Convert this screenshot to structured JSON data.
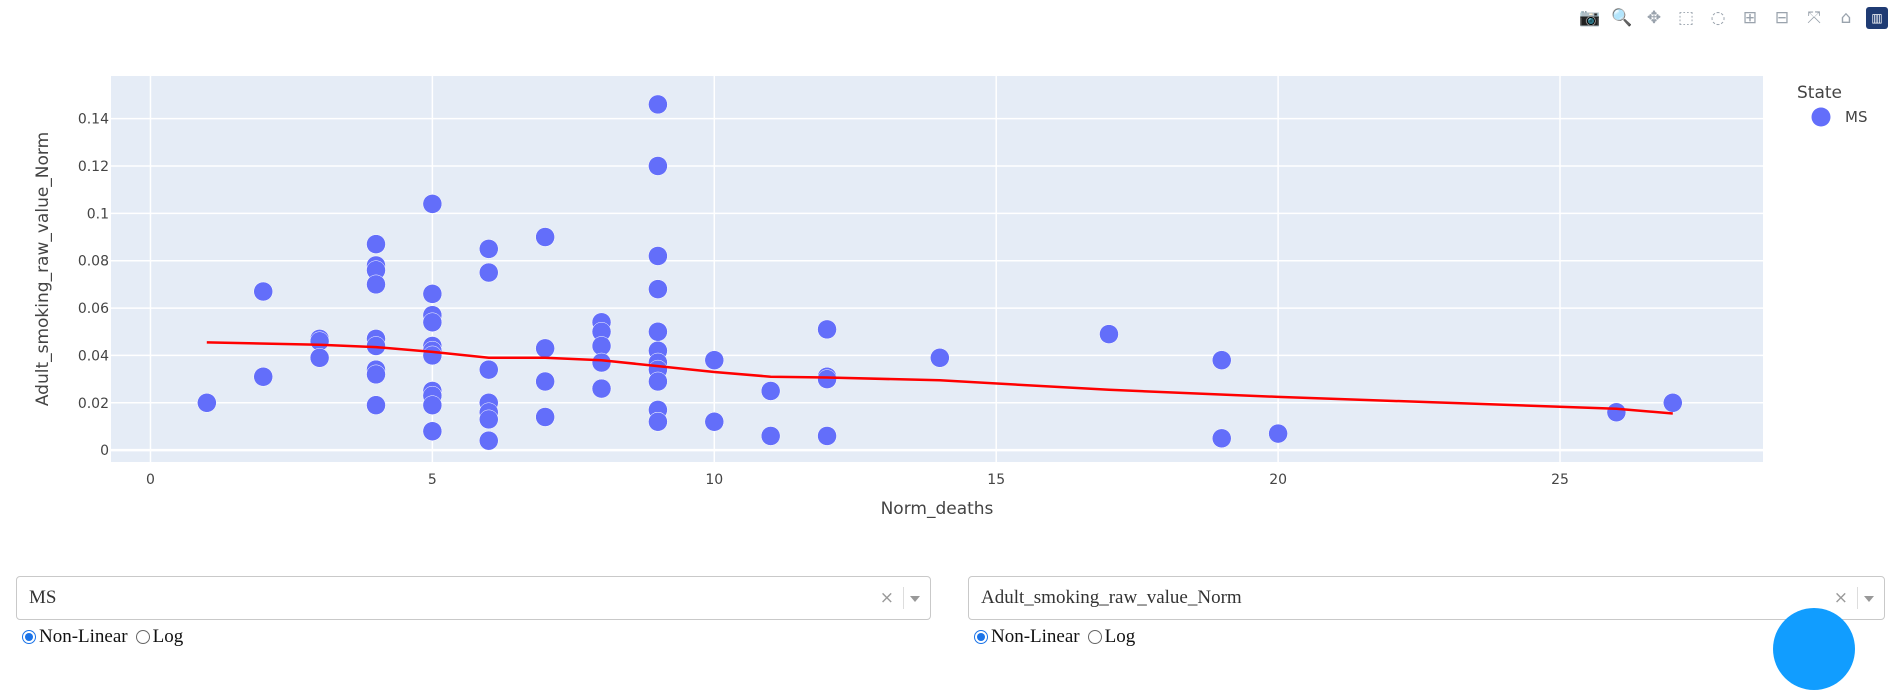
{
  "modebar": {
    "buttons": [
      {
        "name": "camera-icon",
        "glyph": "📷"
      },
      {
        "name": "zoom-icon",
        "glyph": "🔍"
      },
      {
        "name": "pan-icon",
        "glyph": "✥"
      },
      {
        "name": "box-select-icon",
        "glyph": "⬚"
      },
      {
        "name": "lasso-select-icon",
        "glyph": "◌"
      },
      {
        "name": "zoom-in-icon",
        "glyph": "⊞"
      },
      {
        "name": "zoom-out-icon",
        "glyph": "⊟"
      },
      {
        "name": "autoscale-icon",
        "glyph": "⤧"
      },
      {
        "name": "reset-axes-icon",
        "glyph": "⌂"
      }
    ],
    "logo_glyph": "▥"
  },
  "chart_data": {
    "type": "scatter",
    "xlabel": "Norm_deaths",
    "ylabel": "Adult_smoking_raw_value_Norm",
    "xlim": [
      -0.7,
      28.6
    ],
    "ylim": [
      -0.005,
      0.158
    ],
    "xticks": [
      0,
      5,
      10,
      15,
      20,
      25
    ],
    "xtick_labels": [
      "0",
      "5",
      "10",
      "15",
      "20",
      "25"
    ],
    "yticks": [
      0,
      0.02,
      0.04,
      0.06,
      0.08,
      0.1,
      0.12,
      0.14
    ],
    "ytick_labels": [
      "0",
      "0.02",
      "0.04",
      "0.06",
      "0.08",
      "0.1",
      "0.12",
      "0.14"
    ],
    "grid": true,
    "legend": {
      "title": "State",
      "position": "top-right",
      "entries": [
        {
          "name": "MS",
          "color": "#636efa"
        }
      ]
    },
    "series": [
      {
        "name": "MS",
        "color": "#636efa",
        "mode": "markers",
        "x": [
          1,
          2,
          2,
          3,
          3,
          3,
          4,
          4,
          4,
          4,
          4,
          4,
          4,
          4,
          4,
          5,
          5,
          5,
          5,
          5,
          5,
          5,
          5,
          5,
          5,
          5,
          5,
          6,
          6,
          6,
          6,
          6,
          6,
          6,
          7,
          7,
          7,
          7,
          8,
          8,
          8,
          8,
          8,
          8,
          9,
          9,
          9,
          9,
          9,
          9,
          9,
          9,
          9,
          9,
          9,
          9,
          10,
          10,
          11,
          11,
          12,
          12,
          12,
          12,
          14,
          17,
          19,
          19,
          20,
          26,
          27
        ],
        "y": [
          0.02,
          0.067,
          0.031,
          0.047,
          0.046,
          0.039,
          0.087,
          0.078,
          0.076,
          0.07,
          0.047,
          0.044,
          0.034,
          0.032,
          0.019,
          0.104,
          0.066,
          0.057,
          0.054,
          0.044,
          0.042,
          0.04,
          0.025,
          0.023,
          0.019,
          0.008,
          0.008,
          0.085,
          0.075,
          0.034,
          0.02,
          0.016,
          0.013,
          0.004,
          0.09,
          0.043,
          0.029,
          0.014,
          0.054,
          0.05,
          0.044,
          0.037,
          0.026,
          0.026,
          0.146,
          0.12,
          0.082,
          0.068,
          0.05,
          0.042,
          0.037,
          0.034,
          0.029,
          0.017,
          0.012,
          0.012,
          0.038,
          0.012,
          0.025,
          0.006,
          0.051,
          0.031,
          0.03,
          0.006,
          0.039,
          0.049,
          0.038,
          0.005,
          0.007,
          0.016,
          0.02
        ]
      },
      {
        "name": "trend",
        "color": "#ff0000",
        "mode": "lines",
        "x": [
          1,
          3,
          4,
          5,
          6,
          7,
          8,
          9,
          10,
          11,
          12,
          14,
          17,
          20,
          26,
          27
        ],
        "y": [
          0.0455,
          0.0445,
          0.0435,
          0.0415,
          0.039,
          0.039,
          0.038,
          0.0355,
          0.033,
          0.031,
          0.0307,
          0.0295,
          0.0255,
          0.0225,
          0.0175,
          0.0155
        ]
      }
    ]
  },
  "controls": {
    "left": {
      "selected": "MS",
      "clear_glyph": "×",
      "radio_options": [
        "Non-Linear",
        "Log"
      ],
      "radio_selected": 0
    },
    "right": {
      "selected": "Adult_smoking_raw_value_Norm",
      "clear_glyph": "×",
      "radio_options": [
        "Non-Linear",
        "Log"
      ],
      "radio_selected": 0
    }
  }
}
